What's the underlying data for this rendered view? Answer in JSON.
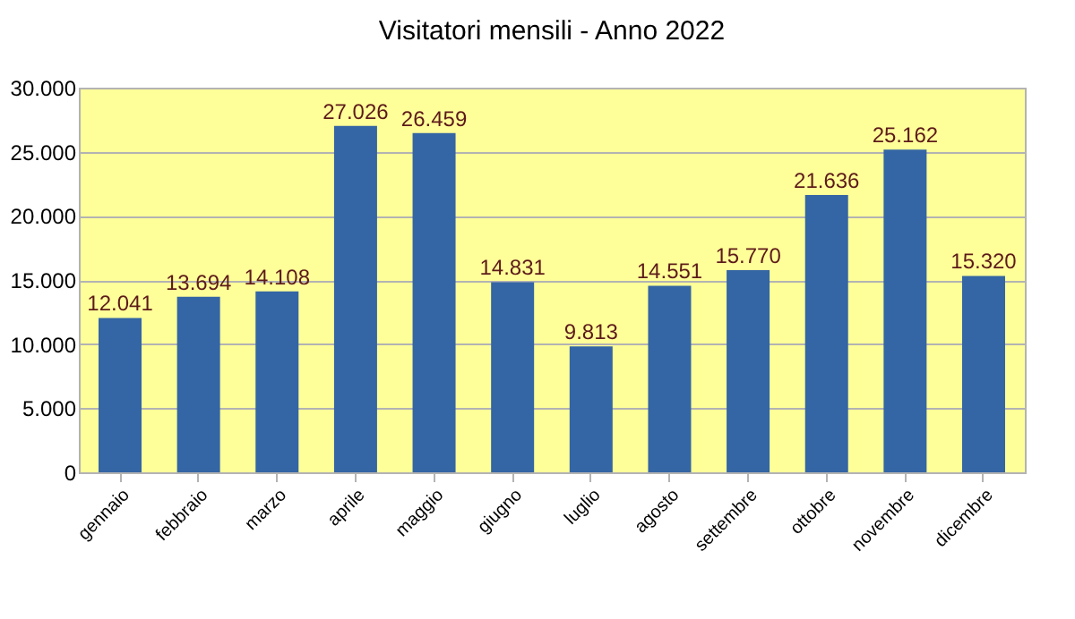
{
  "chart_data": {
    "type": "bar",
    "title": "Visitatori mensili - Anno 2022",
    "categories": [
      "gennaio",
      "febbraio",
      "marzo",
      "aprile",
      "maggio",
      "giugno",
      "luglio",
      "agosto",
      "settembre",
      "ottobre",
      "novembre",
      "dicembre"
    ],
    "values": [
      12041,
      13694,
      14108,
      27026,
      26459,
      14831,
      9813,
      14551,
      15770,
      21636,
      25162,
      15320
    ],
    "value_labels": [
      "12.041",
      "13.694",
      "14.108",
      "27.026",
      "26.459",
      "14.831",
      "9.813",
      "14.551",
      "15.770",
      "21.636",
      "25.162",
      "15.320"
    ],
    "color": "#3465a4",
    "ylim": [
      0,
      30000
    ],
    "yticks": [
      {
        "value": 0,
        "label": "0"
      },
      {
        "value": 5000,
        "label": "5.000"
      },
      {
        "value": 10000,
        "label": "10.000"
      },
      {
        "value": 15000,
        "label": "15.000"
      },
      {
        "value": 20000,
        "label": "20.000"
      },
      {
        "value": 25000,
        "label": "25.000"
      },
      {
        "value": 30000,
        "label": "30.000"
      }
    ],
    "grid": "y"
  }
}
